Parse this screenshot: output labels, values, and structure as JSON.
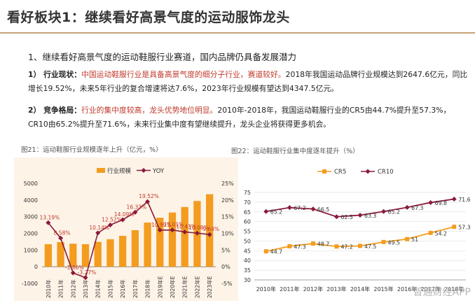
{
  "page": {
    "title": "看好板块1：继续看好高景气度的运动服饰龙头",
    "subtitle": "1、继续看好高景气度的运动鞋服行业赛道，国内品牌仍具备发展潜力",
    "p1": {
      "label": "1） 行业现状：",
      "highlight": "中国运动鞋服行业是具备高景气度的细分子行业，赛道较好。",
      "text": "2018年我国运动品牌行业规模达到2647.6亿元，同比增长19.52%，未来5年行业的复合增速将达7.6%，2023年行业规模有望达到4347.5亿元。"
    },
    "p2": {
      "label": "2） 竞争格局：",
      "highlight": "行业的集中度较高，龙头优势地位明显。",
      "text": "2010年-2018年，我国运动鞋服行业的CR5由44.7%提升至57.3%，CR10由65.2%提升至71.6%，未来行业集中度有望继续提升，龙头企业将获得更多机会。"
    },
    "watermark": "智通财经APP"
  },
  "chart_data": [
    {
      "type": "bar+line",
      "title": "图21：运动鞋服行业规模逐年上升（亿元，%）",
      "categories": [
        "2010年",
        "2011年",
        "2012年",
        "2013年",
        "2014年",
        "2015年",
        "2016年",
        "2017年",
        "2018年",
        "2019年E",
        "2020年E",
        "2021年E",
        "2022年E",
        "2023年E"
      ],
      "series": [
        {
          "name": "行业规模",
          "axis": "left",
          "values": [
            1350,
            1480,
            1380,
            1350,
            1490,
            1650,
            1850,
            2190,
            2647.6,
            2940,
            3250,
            3580,
            3940,
            4347.5
          ]
        },
        {
          "name": "YOY",
          "axis": "right",
          "values": [
            13.19,
            8.58,
            -1.86,
            -3.27,
            10.14,
            12.52,
            14.09,
            16.33,
            19.52,
            10.99,
            11.01,
            10.43,
            10.08,
            9.64
          ]
        }
      ],
      "data_labels": [
        "13.19%",
        "8.58%",
        "-1.86%",
        "-3.27%",
        "10.14%",
        "12.52%",
        "14.09%",
        "16.33%",
        "19.52%",
        "10.99%",
        "11.01%",
        "10.43%",
        "10.08%",
        "9.64%"
      ],
      "yticks_left": [
        "-1000",
        "0",
        "1000",
        "2000",
        "3000",
        "4000",
        "5000"
      ],
      "yticks_right": [
        "-5%",
        "0%",
        "5%",
        "10%",
        "15%",
        "20%",
        "25%"
      ],
      "ylim_left": [
        -1000,
        5000
      ],
      "ylim_right": [
        -5,
        25
      ],
      "colors": {
        "bar": "#f39c1f",
        "line": "#8b1a3a"
      }
    },
    {
      "type": "line",
      "title": "图22：运动鞋服行业集中度逐年提升（%）",
      "categories": [
        "2010年",
        "2011年",
        "2012年",
        "2013年",
        "2014年",
        "2015年",
        "2016年",
        "2017年",
        "2018年"
      ],
      "series": [
        {
          "name": "CR5",
          "values": [
            44.7,
            47.3,
            48.7,
            47.2,
            47.5,
            49.5,
            51,
            54.2,
            57.3
          ]
        },
        {
          "name": "CR10",
          "values": [
            65.2,
            67.2,
            66.5,
            62.5,
            63.3,
            65.2,
            67.3,
            69.8,
            71.6
          ]
        }
      ],
      "cr5_labels": [
        "44.7",
        "47.3",
        "48.7",
        "47.2",
        "47.5",
        "49.5",
        "51",
        "54.2",
        "57.3"
      ],
      "cr10_labels": [
        "65.2",
        "67.2",
        "66.5",
        "62.5",
        "63.3",
        "65.2",
        "67.3",
        "69.8",
        "71.6"
      ],
      "yticks": [
        "30",
        "35",
        "40",
        "45",
        "50",
        "55",
        "60",
        "65",
        "70",
        "75"
      ],
      "ylim": [
        30,
        75
      ],
      "colors": {
        "cr5": "#f39c1f",
        "cr10": "#8b1a3a"
      }
    }
  ]
}
